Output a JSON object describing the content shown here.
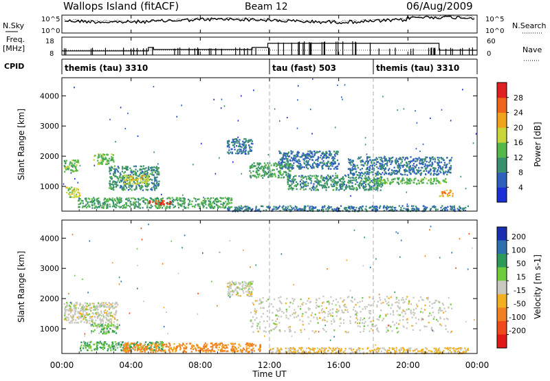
{
  "header": {
    "station": "Wallops Island (fitACF)",
    "beam": "Beam 12",
    "date": "06/Aug/2009"
  },
  "left_labels": {
    "nsky": "N.Sky",
    "freq_line1": "Freq.",
    "freq_line2": "[MHz]",
    "cpid": "CPID"
  },
  "right_labels": {
    "nsearch": "N.Search",
    "nave": "Nave"
  },
  "nsky_axis": {
    "top": "10^5",
    "bottom": "10^0"
  },
  "nsearch_axis": {
    "top": "10^5",
    "bottom": "10^0"
  },
  "freq_axis": {
    "top": "18",
    "bottom": "8"
  },
  "nave_axis": {
    "top": "60",
    "bottom": "0"
  },
  "cpid_segments": [
    {
      "label": "themis (tau) 3310",
      "start_hour": 0.0,
      "end_hour": 12.0
    },
    {
      "label": "tau (fast) 503",
      "start_hour": 12.0,
      "end_hour": 18.0
    },
    {
      "label": "themis (tau) 3310",
      "start_hour": 18.0,
      "end_hour": 24.0
    }
  ],
  "x_axis": {
    "label": "Time UT",
    "ticks": [
      "00:00",
      "04:00",
      "08:00",
      "12:00",
      "16:00",
      "20:00",
      "00:00"
    ],
    "range_hours": [
      0,
      24
    ]
  },
  "power_panel": {
    "ylabel": "Slant Range [km]",
    "yticks": [
      "1000",
      "2000",
      "3000",
      "4000"
    ],
    "colorbar_label": "Power [dB]",
    "colorbar_ticks": [
      "4",
      "8",
      "12",
      "16",
      "20",
      "24",
      "28"
    ],
    "colors": [
      "#1c2fd6",
      "#2f60bf",
      "#3a8f6e",
      "#57b84a",
      "#c9d63a",
      "#f0a21c",
      "#f0641a",
      "#e02020"
    ]
  },
  "velocity_panel": {
    "ylabel": "Slant Range [km]",
    "yticks": [
      "1000",
      "2000",
      "3000",
      "4000"
    ],
    "colorbar_label": "Velocity [m s-1]",
    "colorbar_ticks": [
      "200",
      "100",
      "50",
      "15",
      "-15",
      "-50",
      "-100",
      "-200"
    ],
    "colors": [
      "#1a2fb0",
      "#2e6fb0",
      "#2e9a5a",
      "#6fcc3a",
      "#c8c8c0",
      "#f0b020",
      "#f08020",
      "#f04a1a",
      "#e01818"
    ]
  },
  "chart_data": {
    "type": "heatmap",
    "title": "Wallops Island (fitACF)",
    "xlabel": "Time UT",
    "ylabel": "Slant Range [km]",
    "x_range_hours": [
      0,
      24
    ],
    "y_range_km": [
      180,
      4600
    ],
    "power_regions": [
      {
        "t0": 0.1,
        "t1": 1.0,
        "r0": 1500,
        "r1": 1900,
        "power_db": 14
      },
      {
        "t0": 0.2,
        "t1": 1.0,
        "r0": 650,
        "r1": 1000,
        "power_db": 18
      },
      {
        "t0": 1.8,
        "t1": 3.0,
        "r0": 1750,
        "r1": 2100,
        "power_db": 14
      },
      {
        "t0": 2.7,
        "t1": 5.6,
        "r0": 900,
        "r1": 1700,
        "power_db": 10
      },
      {
        "t0": 3.5,
        "t1": 5.0,
        "r0": 1100,
        "r1": 1400,
        "power_db": 18
      },
      {
        "t0": 0.9,
        "t1": 9.8,
        "r0": 300,
        "r1": 650,
        "power_db": 12
      },
      {
        "t0": 5.0,
        "t1": 6.3,
        "r0": 420,
        "r1": 560,
        "power_db": 28
      },
      {
        "t0": 9.5,
        "t1": 11.0,
        "r0": 2100,
        "r1": 2600,
        "power_db": 8
      },
      {
        "t0": 9.5,
        "t1": 23.5,
        "r0": 200,
        "r1": 380,
        "power_db": 8
      },
      {
        "t0": 10.8,
        "t1": 13.2,
        "r0": 1300,
        "r1": 1800,
        "power_db": 12
      },
      {
        "t0": 12.5,
        "t1": 16.0,
        "r0": 1600,
        "r1": 2200,
        "power_db": 8
      },
      {
        "t0": 13.0,
        "t1": 18.5,
        "r0": 900,
        "r1": 1400,
        "power_db": 10
      },
      {
        "t0": 16.5,
        "t1": 22.5,
        "r0": 1400,
        "r1": 2000,
        "power_db": 8
      },
      {
        "t0": 18.0,
        "t1": 22.2,
        "r0": 1100,
        "r1": 1300,
        "power_db": 14
      },
      {
        "t0": 21.8,
        "t1": 22.6,
        "r0": 700,
        "r1": 900,
        "power_db": 22
      }
    ],
    "velocity_regions": [
      {
        "t0": 0.1,
        "t1": 3.2,
        "r0": 1200,
        "r1": 1900,
        "velocity": 0
      },
      {
        "t0": 1.6,
        "t1": 3.2,
        "r0": 850,
        "r1": 1200,
        "velocity": 20
      },
      {
        "t0": 1.0,
        "t1": 5.8,
        "r0": 300,
        "r1": 600,
        "velocity": 30
      },
      {
        "t0": 3.5,
        "t1": 11.5,
        "r0": 250,
        "r1": 550,
        "velocity": -60
      },
      {
        "t0": 9.5,
        "t1": 11.0,
        "r0": 2100,
        "r1": 2600,
        "velocity": 0
      },
      {
        "t0": 10.8,
        "t1": 22.5,
        "r0": 900,
        "r1": 2100,
        "velocity": 0
      },
      {
        "t0": 12.0,
        "t1": 23.5,
        "r0": 200,
        "r1": 400,
        "velocity": -20
      }
    ]
  }
}
